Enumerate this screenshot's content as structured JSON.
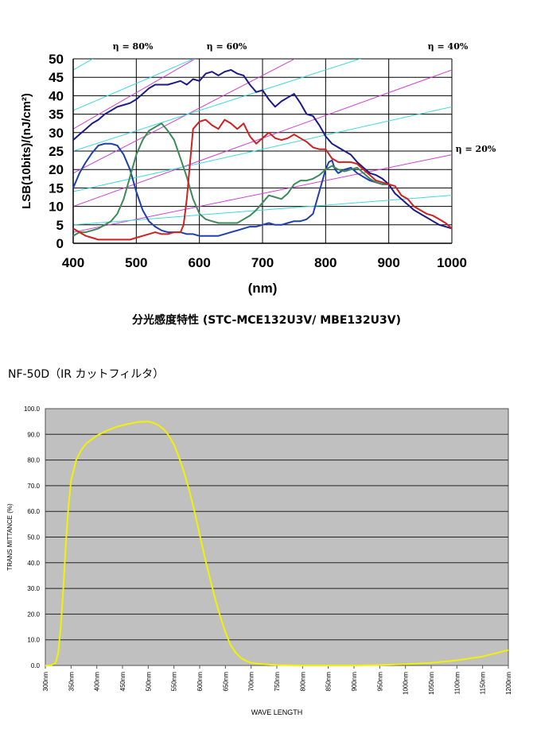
{
  "caption": "分光感度特性 (STC-MCE132U3V/ MBE132U3V)",
  "filter_title": "NF-50D（IR カットフィルタ）",
  "colors": {
    "mono": "#1a1a8a",
    "blue": "#1f3fb0",
    "green": "#3c8a5a",
    "red": "#d02020",
    "eta_line": "#d040d0",
    "cyan_line": "#40d8e0",
    "filter_curve": "#f2f200",
    "plot_bg": "#c0c0c0"
  },
  "chart_data": [
    {
      "type": "line",
      "title": "",
      "xlabel": "(nm)",
      "ylabel": "LSB(10bits)/(nJ/cm²)",
      "xlim": [
        400,
        1000
      ],
      "ylim": [
        0,
        50
      ],
      "xticks": [
        "400",
        "500",
        "600",
        "700",
        "800",
        "900",
        "1000"
      ],
      "yticks": [
        "0",
        "5",
        "10",
        "15",
        "20",
        "25",
        "30",
        "35",
        "40",
        "45",
        "50"
      ],
      "grid": true,
      "annotations": [
        "η = 80%",
        "η = 60%",
        "η = 40%",
        "η = 20%"
      ],
      "series": [
        {
          "color_key": "mono",
          "x": [
            400,
            410,
            420,
            430,
            440,
            450,
            460,
            470,
            480,
            490,
            500,
            510,
            520,
            530,
            540,
            550,
            560,
            570,
            580,
            590,
            600,
            610,
            620,
            630,
            640,
            650,
            660,
            670,
            680,
            690,
            700,
            710,
            720,
            730,
            740,
            750,
            760,
            770,
            780,
            790,
            800,
            810,
            820,
            830,
            840,
            850,
            860,
            870,
            880,
            890,
            900,
            910,
            920,
            930,
            940,
            950,
            960,
            970,
            980,
            990,
            1000
          ],
          "y": [
            28,
            29.5,
            31,
            32.5,
            33.5,
            35,
            36,
            37,
            37.5,
            38,
            39,
            40.5,
            42,
            43,
            43,
            43,
            43.5,
            44,
            43,
            44.5,
            44,
            46,
            46.5,
            45.5,
            46.5,
            47,
            46,
            45.5,
            43,
            41,
            41.5,
            39,
            37,
            38.5,
            39.5,
            40.5,
            38,
            35,
            34.5,
            32,
            29,
            27,
            26,
            25,
            24,
            22,
            20.5,
            19,
            18.5,
            17.5,
            16,
            13.5,
            12,
            10.5,
            9,
            8,
            7,
            6,
            5,
            4.5,
            4
          ]
        },
        {
          "color_key": "blue",
          "x": [
            400,
            410,
            420,
            430,
            440,
            450,
            460,
            470,
            480,
            490,
            500,
            510,
            520,
            530,
            540,
            550,
            560,
            570,
            580,
            590,
            600,
            610,
            620,
            630,
            640,
            650,
            660,
            670,
            680,
            690,
            700,
            710,
            720,
            730,
            740,
            750,
            760,
            770,
            780,
            790,
            800,
            805,
            810,
            815,
            820,
            830,
            840,
            850,
            860,
            870,
            880,
            890,
            900
          ],
          "y": [
            15,
            19,
            22,
            24.5,
            26.5,
            27,
            27,
            26.5,
            24,
            20,
            14,
            9,
            6,
            4.5,
            3.5,
            3,
            3,
            3,
            2.5,
            2.5,
            2,
            2,
            2,
            2,
            2.5,
            3,
            3.5,
            4,
            4.5,
            4.5,
            5,
            5.5,
            5,
            5,
            5.5,
            6,
            6,
            6.5,
            8,
            14,
            20,
            22,
            22.5,
            20,
            19,
            20,
            20.5,
            19,
            18,
            17,
            16.5,
            16,
            16
          ]
        },
        {
          "color_key": "green",
          "x": [
            400,
            410,
            420,
            430,
            440,
            450,
            460,
            470,
            480,
            490,
            500,
            510,
            520,
            530,
            540,
            550,
            560,
            570,
            580,
            590,
            600,
            610,
            620,
            630,
            640,
            650,
            660,
            670,
            680,
            690,
            700,
            710,
            720,
            730,
            740,
            750,
            760,
            770,
            780,
            790,
            800,
            810,
            820,
            830,
            840,
            850,
            860,
            870,
            880,
            890,
            900
          ],
          "y": [
            2,
            3,
            3,
            3.5,
            4,
            5,
            6,
            8,
            12,
            18,
            24,
            28,
            30.5,
            31.5,
            32.5,
            30.5,
            28,
            23,
            18,
            12,
            8,
            6.5,
            6,
            5.5,
            5.5,
            5.5,
            5.5,
            6.5,
            7.5,
            9,
            11,
            13,
            12.5,
            12,
            13.5,
            16,
            17,
            17,
            17.5,
            18.5,
            20,
            21,
            20,
            19.5,
            20,
            20.5,
            19,
            17.5,
            16.5,
            16,
            16
          ]
        },
        {
          "color_key": "red",
          "x": [
            400,
            410,
            420,
            430,
            440,
            450,
            460,
            470,
            480,
            490,
            500,
            510,
            520,
            530,
            540,
            550,
            560,
            570,
            575,
            580,
            590,
            600,
            610,
            620,
            630,
            640,
            650,
            660,
            670,
            680,
            690,
            700,
            710,
            720,
            730,
            740,
            750,
            760,
            770,
            780,
            790,
            800,
            810,
            820,
            830,
            840,
            850,
            860,
            870,
            880,
            890,
            900,
            910,
            920,
            930,
            940,
            950,
            960,
            970,
            980,
            990,
            1000
          ],
          "y": [
            4,
            3,
            2,
            1.5,
            1,
            1,
            1,
            1,
            1,
            1,
            1.5,
            2,
            2.5,
            3,
            2.5,
            2.5,
            3,
            3,
            5,
            12,
            31,
            33,
            33.5,
            32,
            31,
            33.5,
            32.5,
            31,
            32.5,
            29,
            27,
            28.5,
            30,
            28.5,
            28,
            28.5,
            29.5,
            28.5,
            27.5,
            26,
            25.5,
            25.5,
            23,
            22,
            22,
            22,
            21.5,
            20,
            18.5,
            17,
            16.5,
            16,
            15.5,
            13,
            12,
            10,
            9,
            8,
            7.5,
            6.5,
            5.5,
            4
          ]
        }
      ]
    },
    {
      "type": "line",
      "title": "",
      "xlabel": "WAVE LENGTH",
      "ylabel": "TRANS MITTANCE (%)",
      "xlim": [
        300,
        1200
      ],
      "ylim": [
        0,
        100
      ],
      "xticks": [
        "300nm",
        "350nm",
        "400nm",
        "450nm",
        "500nm",
        "550nm",
        "600nm",
        "650nm",
        "700nm",
        "750nm",
        "800nm",
        "850nm",
        "900nm",
        "950nm",
        "1000nm",
        "1050nm",
        "1100nm",
        "1150nm",
        "1200nm"
      ],
      "yticks": [
        "0.0",
        "10.0",
        "20.0",
        "30.0",
        "40.0",
        "50.0",
        "60.0",
        "70.0",
        "80.0",
        "90.0",
        "100.0"
      ],
      "grid": true,
      "series": [
        {
          "color_key": "filter_curve",
          "x": [
            300,
            310,
            320,
            325,
            330,
            335,
            340,
            345,
            350,
            360,
            370,
            380,
            400,
            420,
            440,
            460,
            480,
            500,
            510,
            520,
            530,
            540,
            550,
            560,
            570,
            580,
            590,
            600,
            610,
            620,
            630,
            640,
            650,
            660,
            670,
            680,
            690,
            700,
            720,
            750,
            800,
            850,
            900,
            950,
            1000,
            1050,
            1100,
            1150,
            1200
          ],
          "y": [
            0,
            0,
            1,
            5,
            15,
            30,
            48,
            62,
            72,
            80,
            84,
            86.5,
            89.5,
            91.5,
            93,
            94,
            94.8,
            95,
            94.5,
            93.5,
            92,
            89.5,
            86,
            81,
            75,
            68,
            60,
            51,
            42,
            34,
            26,
            19,
            13,
            8,
            5,
            3,
            1.8,
            1,
            0.5,
            0.2,
            0,
            0,
            0,
            0.2,
            0.5,
            1,
            2,
            3.5,
            6
          ]
        }
      ]
    }
  ]
}
